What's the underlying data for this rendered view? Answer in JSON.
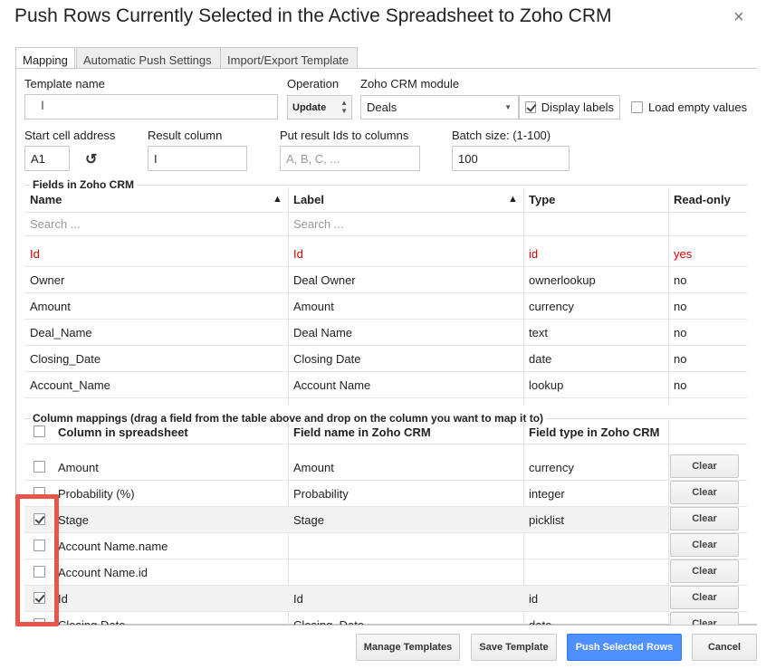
{
  "dialog": {
    "title": "Push Rows Currently Selected in the Active Spreadsheet to Zoho CRM",
    "close_glyph": "×"
  },
  "tabs": [
    {
      "label": "Mapping",
      "active": true
    },
    {
      "label": "Automatic Push Settings",
      "active": false
    },
    {
      "label": "Import/Export Template",
      "active": false
    }
  ],
  "form": {
    "template_name_label": "Template name",
    "template_name_value": "",
    "operation_label": "Operation",
    "operation_value": "Update",
    "module_label": "Zoho CRM module",
    "module_value": "Deals",
    "display_labels_label": "Display labels",
    "display_labels_checked": true,
    "load_empty_label": "Load empty values",
    "load_empty_checked": false,
    "start_cell_label": "Start cell address",
    "start_cell_value": "A1",
    "result_column_label": "Result column",
    "result_column_value": "I",
    "result_ids_label": "Put result Ids to columns",
    "result_ids_placeholder": "A, B, C, ...",
    "batch_size_label": "Batch size: (1-100)",
    "batch_size_value": "100"
  },
  "fields_section": {
    "title": "Fields in Zoho CRM",
    "columns": [
      "Name",
      "Label",
      "Type",
      "Read-only"
    ],
    "search_placeholder": "Search ...",
    "rows": [
      {
        "name": "Id",
        "label": "Id",
        "type": "id",
        "readonly": "yes",
        "highlight": true
      },
      {
        "name": "Owner",
        "label": "Deal Owner",
        "type": "ownerlookup",
        "readonly": "no"
      },
      {
        "name": "Amount",
        "label": "Amount",
        "type": "currency",
        "readonly": "no"
      },
      {
        "name": "Deal_Name",
        "label": "Deal Name",
        "type": "text",
        "readonly": "no"
      },
      {
        "name": "Closing_Date",
        "label": "Closing Date",
        "type": "date",
        "readonly": "no"
      },
      {
        "name": "Account_Name",
        "label": "Account Name",
        "type": "lookup",
        "readonly": "no"
      }
    ]
  },
  "mappings_section": {
    "title": "Column mappings (drag a field from the table above and drop on the column you want to map it to)",
    "columns": [
      "Column in spreadsheet",
      "Field name in Zoho CRM",
      "Field type in Zoho CRM"
    ],
    "clear_label": "Clear",
    "rows": [
      {
        "column": "Amount",
        "field": "Amount",
        "type": "currency",
        "checked": false
      },
      {
        "column": "Probability (%)",
        "field": "Probability",
        "type": "integer",
        "checked": false
      },
      {
        "column": "Stage",
        "field": "Stage",
        "type": "picklist",
        "checked": true
      },
      {
        "column": "Account Name.name",
        "field": "",
        "type": "",
        "checked": false
      },
      {
        "column": "Account Name.id",
        "field": "",
        "type": "",
        "checked": false
      },
      {
        "column": "Id",
        "field": "Id",
        "type": "id",
        "checked": true
      },
      {
        "column": "Closing Date",
        "field": "Closing_Date",
        "type": "date",
        "checked": false
      }
    ]
  },
  "footer": {
    "manage_templates": "Manage Templates",
    "save_template": "Save Template",
    "push_selected_rows": "Push Selected Rows",
    "cancel": "Cancel"
  },
  "colors": {
    "primary": "#4d90fe",
    "readonly_highlight": "#d40000",
    "annotation": "#e8554a"
  }
}
